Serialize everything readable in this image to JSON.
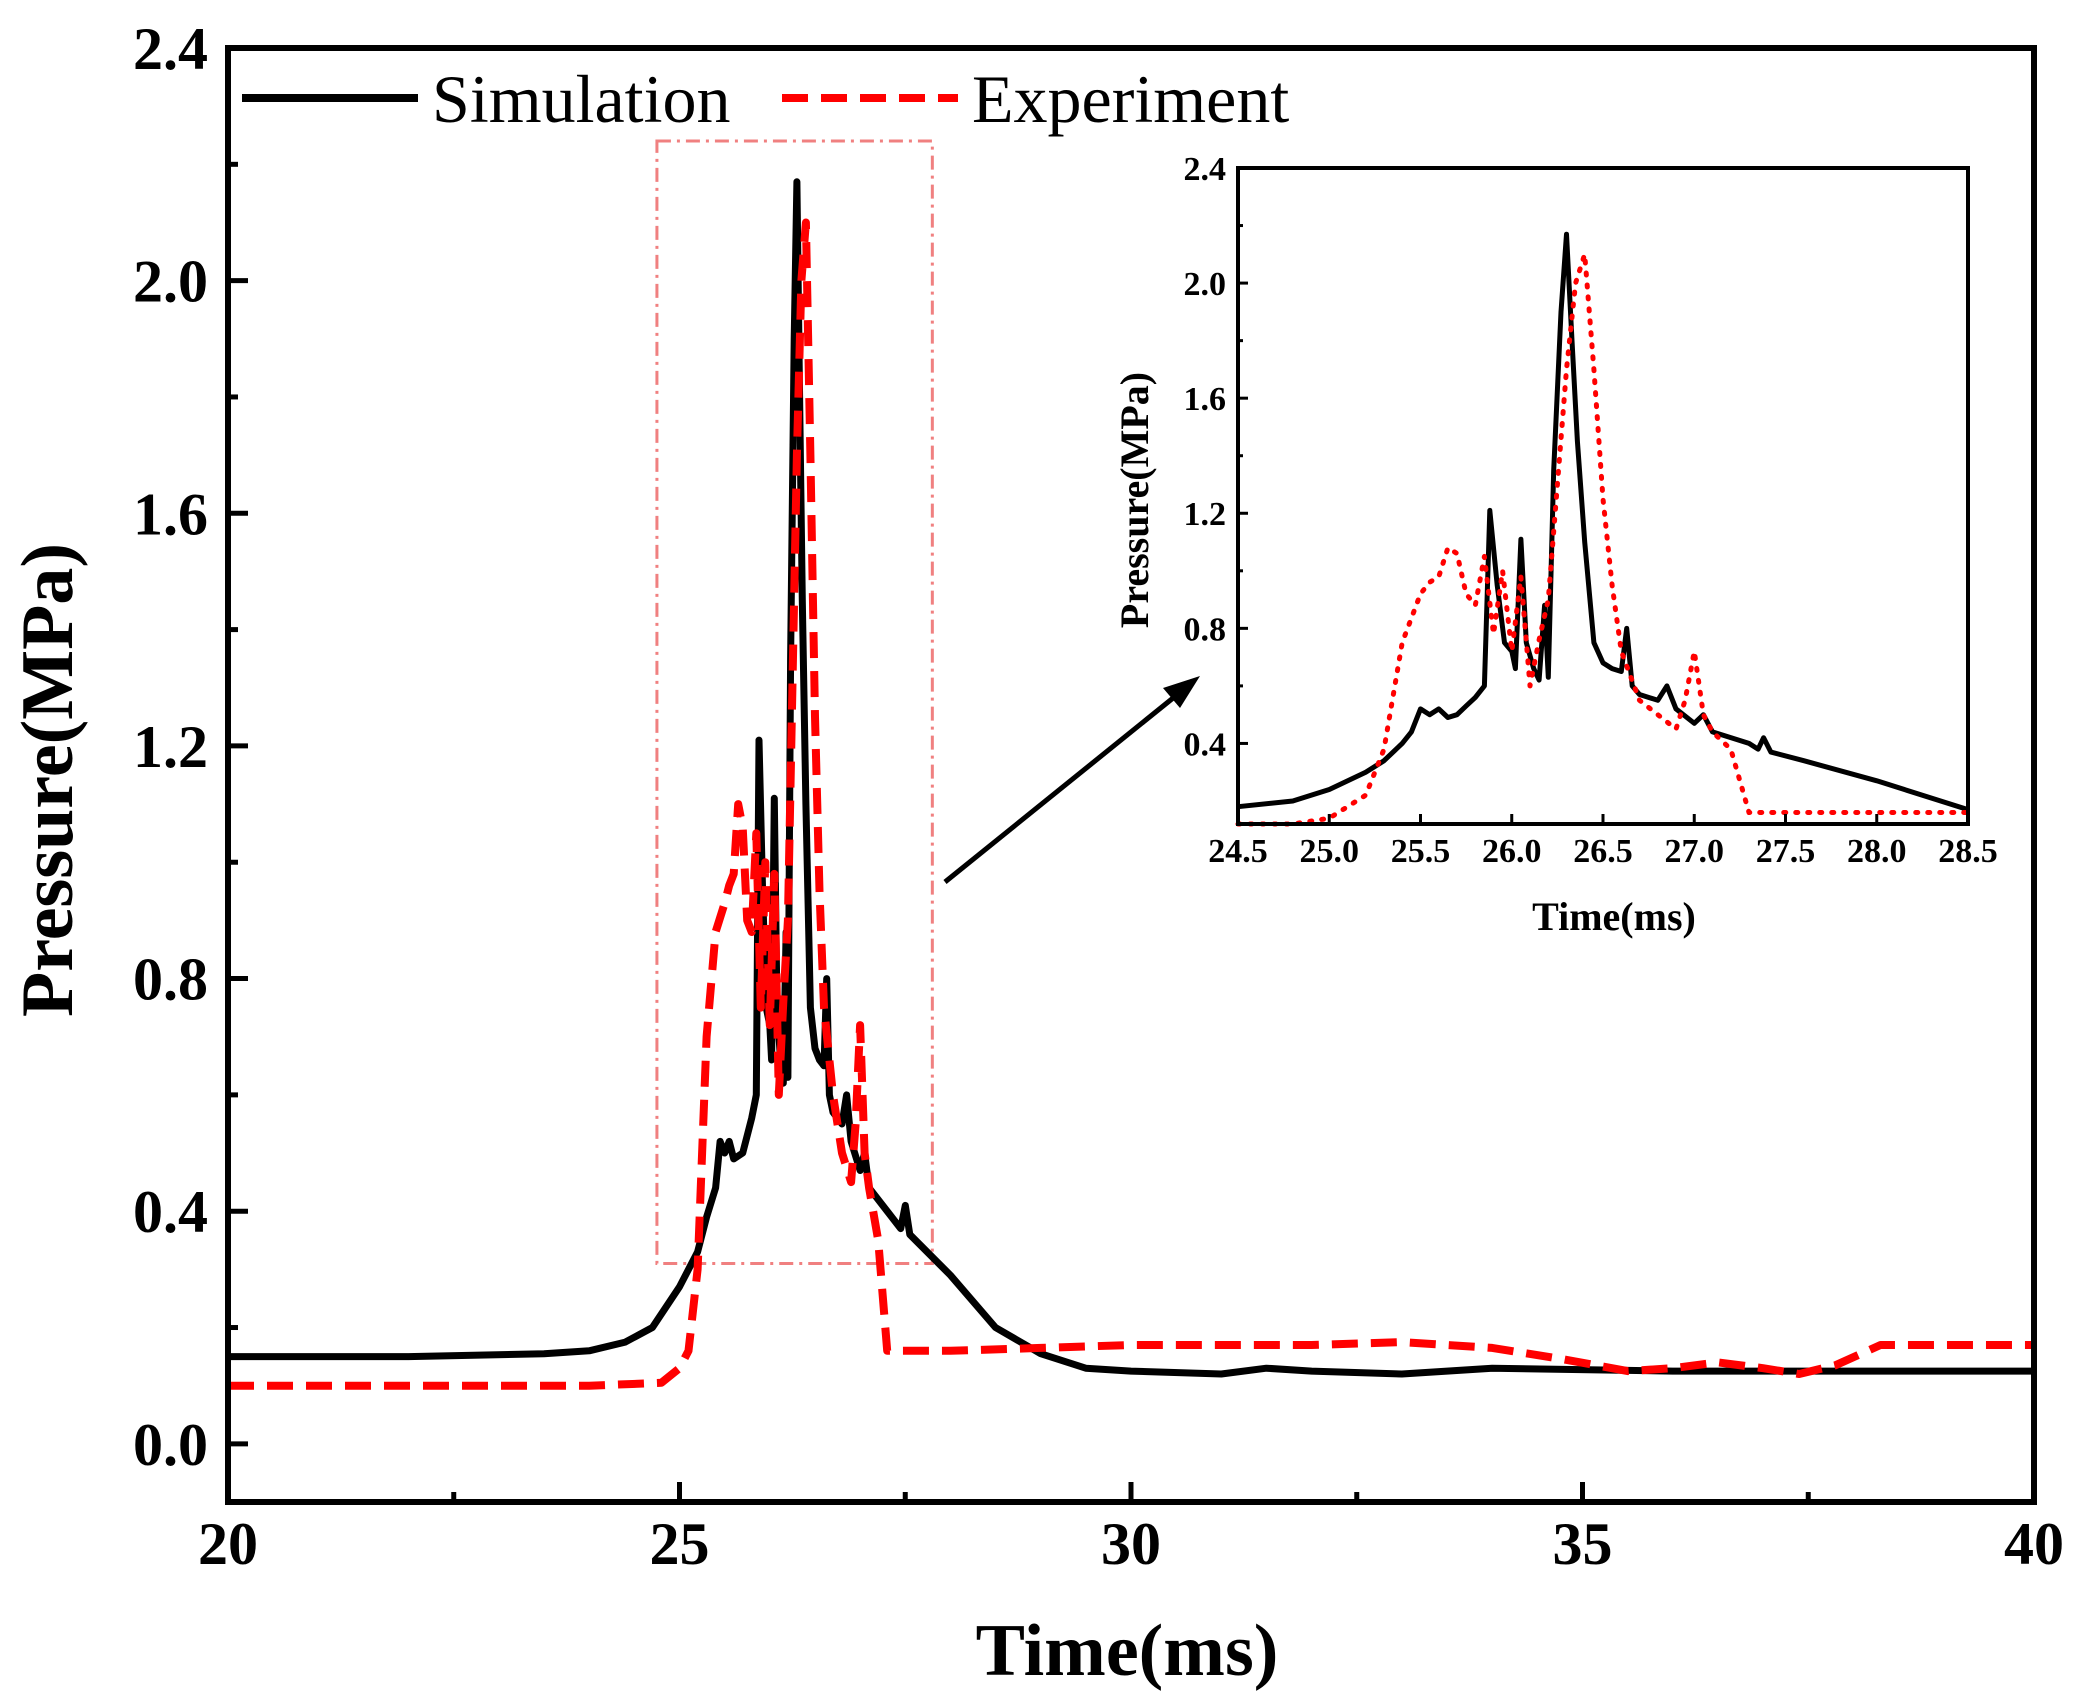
{
  "chart_data": [
    {
      "type": "line",
      "role": "main",
      "xlabel": "Time(ms)",
      "ylabel": "Pressure(MPa)",
      "xlim": [
        20,
        40
      ],
      "ylim": [
        -0.1,
        2.4
      ],
      "xticks": [
        20,
        25,
        30,
        35,
        40
      ],
      "xtick_labels": [
        "20",
        "25",
        "30",
        "35",
        "40"
      ],
      "yticks": [
        0.0,
        0.4,
        0.8,
        1.2,
        1.6,
        2.0,
        2.4
      ],
      "ytick_labels": [
        "0.0",
        "0.4",
        "0.8",
        "1.2",
        "1.6",
        "2.0",
        "2.4"
      ],
      "legend_position": "top-left",
      "zoom_box": {
        "x": [
          24.75,
          27.8
        ],
        "y": [
          0.31,
          2.24
        ]
      },
      "series": [
        {
          "name": "Simulation",
          "style": "solid",
          "color": "#000000",
          "points": [
            [
              20,
              0.15
            ],
            [
              22,
              0.15
            ],
            [
              23.5,
              0.155
            ],
            [
              24,
              0.16
            ],
            [
              24.4,
              0.175
            ],
            [
              24.7,
              0.2
            ],
            [
              25.0,
              0.27
            ],
            [
              25.2,
              0.33
            ],
            [
              25.3,
              0.39
            ],
            [
              25.4,
              0.44
            ],
            [
              25.45,
              0.52
            ],
            [
              25.5,
              0.5
            ],
            [
              25.55,
              0.52
            ],
            [
              25.6,
              0.49
            ],
            [
              25.7,
              0.5
            ],
            [
              25.75,
              0.53
            ],
            [
              25.8,
              0.56
            ],
            [
              25.85,
              0.6
            ],
            [
              25.88,
              1.21
            ],
            [
              25.92,
              0.95
            ],
            [
              25.96,
              0.75
            ],
            [
              26.0,
              0.72
            ],
            [
              26.02,
              0.66
            ],
            [
              26.05,
              1.11
            ],
            [
              26.08,
              0.75
            ],
            [
              26.12,
              0.66
            ],
            [
              26.15,
              0.62
            ],
            [
              26.18,
              0.88
            ],
            [
              26.2,
              0.63
            ],
            [
              26.23,
              1.35
            ],
            [
              26.27,
              1.9
            ],
            [
              26.3,
              2.17
            ],
            [
              26.33,
              1.8
            ],
            [
              26.36,
              1.45
            ],
            [
              26.4,
              1.1
            ],
            [
              26.45,
              0.75
            ],
            [
              26.5,
              0.68
            ],
            [
              26.55,
              0.66
            ],
            [
              26.6,
              0.65
            ],
            [
              26.63,
              0.8
            ],
            [
              26.66,
              0.6
            ],
            [
              26.7,
              0.57
            ],
            [
              26.8,
              0.55
            ],
            [
              26.85,
              0.6
            ],
            [
              26.9,
              0.52
            ],
            [
              27.0,
              0.47
            ],
            [
              27.05,
              0.5
            ],
            [
              27.1,
              0.44
            ],
            [
              27.3,
              0.4
            ],
            [
              27.45,
              0.37
            ],
            [
              27.5,
              0.41
            ],
            [
              27.55,
              0.36
            ],
            [
              28.0,
              0.29
            ],
            [
              28.5,
              0.2
            ],
            [
              29.0,
              0.155
            ],
            [
              29.5,
              0.13
            ],
            [
              30,
              0.125
            ],
            [
              31,
              0.12
            ],
            [
              31.5,
              0.13
            ],
            [
              32,
              0.125
            ],
            [
              33,
              0.12
            ],
            [
              34,
              0.13
            ],
            [
              36,
              0.125
            ],
            [
              38,
              0.125
            ],
            [
              40,
              0.125
            ]
          ]
        },
        {
          "name": "Experiment",
          "style": "dashed",
          "color": "#ff0000",
          "points": [
            [
              20,
              0.1
            ],
            [
              24,
              0.1
            ],
            [
              24.8,
              0.105
            ],
            [
              25.0,
              0.13
            ],
            [
              25.1,
              0.16
            ],
            [
              25.2,
              0.3
            ],
            [
              25.3,
              0.7
            ],
            [
              25.4,
              0.88
            ],
            [
              25.5,
              0.93
            ],
            [
              25.55,
              0.96
            ],
            [
              25.6,
              0.98
            ],
            [
              25.65,
              1.1
            ],
            [
              25.7,
              1.06
            ],
            [
              25.75,
              0.9
            ],
            [
              25.8,
              0.88
            ],
            [
              25.85,
              1.05
            ],
            [
              25.9,
              0.75
            ],
            [
              25.95,
              1.0
            ],
            [
              26.0,
              0.72
            ],
            [
              26.05,
              0.98
            ],
            [
              26.1,
              0.6
            ],
            [
              26.15,
              0.76
            ],
            [
              26.2,
              0.9
            ],
            [
              26.25,
              1.3
            ],
            [
              26.3,
              1.7
            ],
            [
              26.35,
              2.0
            ],
            [
              26.4,
              2.1
            ],
            [
              26.45,
              1.7
            ],
            [
              26.5,
              1.25
            ],
            [
              26.55,
              0.95
            ],
            [
              26.6,
              0.75
            ],
            [
              26.7,
              0.6
            ],
            [
              26.8,
              0.5
            ],
            [
              26.9,
              0.45
            ],
            [
              26.95,
              0.55
            ],
            [
              27.0,
              0.72
            ],
            [
              27.05,
              0.5
            ],
            [
              27.1,
              0.44
            ],
            [
              27.2,
              0.35
            ],
            [
              27.3,
              0.16
            ],
            [
              27.5,
              0.16
            ],
            [
              28,
              0.16
            ],
            [
              29,
              0.165
            ],
            [
              30,
              0.17
            ],
            [
              31,
              0.17
            ],
            [
              32,
              0.17
            ],
            [
              33,
              0.175
            ],
            [
              34,
              0.165
            ],
            [
              34.8,
              0.145
            ],
            [
              35.5,
              0.125
            ],
            [
              36,
              0.13
            ],
            [
              36.5,
              0.14
            ],
            [
              37,
              0.13
            ],
            [
              37.4,
              0.12
            ],
            [
              37.8,
              0.135
            ],
            [
              38.3,
              0.17
            ],
            [
              39,
              0.17
            ],
            [
              40,
              0.17
            ]
          ]
        }
      ]
    },
    {
      "type": "line",
      "role": "inset",
      "xlabel": "Time(ms)",
      "ylabel": "Pressure(MPa)",
      "xlim": [
        24.5,
        28.5
      ],
      "ylim": [
        0.12,
        2.4
      ],
      "xticks": [
        24.5,
        25.0,
        25.5,
        26.0,
        26.5,
        27.0,
        27.5,
        28.0,
        28.5
      ],
      "xtick_labels": [
        "24.5",
        "25.0",
        "25.5",
        "26.0",
        "26.5",
        "27.0",
        "27.5",
        "28.0",
        "28.5"
      ],
      "yticks": [
        0.4,
        0.8,
        1.2,
        1.6,
        2.0,
        2.4
      ],
      "ytick_labels": [
        "0.4",
        "0.8",
        "1.2",
        "1.6",
        "2.0",
        "2.4"
      ],
      "series": [
        {
          "name": "Simulation",
          "style": "solid",
          "color": "#000000",
          "points": [
            [
              24.5,
              0.18
            ],
            [
              24.8,
              0.2
            ],
            [
              25.0,
              0.24
            ],
            [
              25.2,
              0.3
            ],
            [
              25.3,
              0.34
            ],
            [
              25.4,
              0.4
            ],
            [
              25.45,
              0.44
            ],
            [
              25.5,
              0.52
            ],
            [
              25.55,
              0.5
            ],
            [
              25.6,
              0.52
            ],
            [
              25.65,
              0.49
            ],
            [
              25.7,
              0.5
            ],
            [
              25.75,
              0.53
            ],
            [
              25.8,
              0.56
            ],
            [
              25.85,
              0.6
            ],
            [
              25.88,
              1.21
            ],
            [
              25.92,
              0.95
            ],
            [
              25.96,
              0.75
            ],
            [
              26.0,
              0.72
            ],
            [
              26.02,
              0.66
            ],
            [
              26.05,
              1.11
            ],
            [
              26.08,
              0.75
            ],
            [
              26.12,
              0.66
            ],
            [
              26.15,
              0.62
            ],
            [
              26.18,
              0.88
            ],
            [
              26.2,
              0.63
            ],
            [
              26.23,
              1.35
            ],
            [
              26.27,
              1.9
            ],
            [
              26.3,
              2.17
            ],
            [
              26.33,
              1.8
            ],
            [
              26.36,
              1.45
            ],
            [
              26.4,
              1.1
            ],
            [
              26.45,
              0.75
            ],
            [
              26.5,
              0.68
            ],
            [
              26.55,
              0.66
            ],
            [
              26.6,
              0.65
            ],
            [
              26.63,
              0.8
            ],
            [
              26.66,
              0.6
            ],
            [
              26.7,
              0.57
            ],
            [
              26.8,
              0.55
            ],
            [
              26.85,
              0.6
            ],
            [
              26.9,
              0.52
            ],
            [
              27.0,
              0.47
            ],
            [
              27.05,
              0.5
            ],
            [
              27.1,
              0.44
            ],
            [
              27.3,
              0.4
            ],
            [
              27.35,
              0.38
            ],
            [
              27.38,
              0.42
            ],
            [
              27.42,
              0.37
            ],
            [
              27.6,
              0.34
            ],
            [
              28.0,
              0.27
            ],
            [
              28.5,
              0.17
            ]
          ]
        },
        {
          "name": "Experiment",
          "style": "dotted",
          "color": "#ff0000",
          "points": [
            [
              24.5,
              0.12
            ],
            [
              24.8,
              0.12
            ],
            [
              25.0,
              0.14
            ],
            [
              25.2,
              0.22
            ],
            [
              25.3,
              0.38
            ],
            [
              25.4,
              0.75
            ],
            [
              25.5,
              0.92
            ],
            [
              25.55,
              0.96
            ],
            [
              25.6,
              0.98
            ],
            [
              25.65,
              1.08
            ],
            [
              25.7,
              1.06
            ],
            [
              25.75,
              0.92
            ],
            [
              25.8,
              0.88
            ],
            [
              25.85,
              1.05
            ],
            [
              25.9,
              0.78
            ],
            [
              25.95,
              1.0
            ],
            [
              26.0,
              0.72
            ],
            [
              26.05,
              0.98
            ],
            [
              26.1,
              0.6
            ],
            [
              26.15,
              0.76
            ],
            [
              26.2,
              0.9
            ],
            [
              26.25,
              1.3
            ],
            [
              26.3,
              1.7
            ],
            [
              26.35,
              2.0
            ],
            [
              26.4,
              2.1
            ],
            [
              26.45,
              1.7
            ],
            [
              26.5,
              1.25
            ],
            [
              26.55,
              0.95
            ],
            [
              26.6,
              0.72
            ],
            [
              26.7,
              0.55
            ],
            [
              26.8,
              0.5
            ],
            [
              26.9,
              0.45
            ],
            [
              26.95,
              0.55
            ],
            [
              27.0,
              0.72
            ],
            [
              27.05,
              0.5
            ],
            [
              27.1,
              0.44
            ],
            [
              27.2,
              0.38
            ],
            [
              27.3,
              0.16
            ],
            [
              27.5,
              0.16
            ],
            [
              28.0,
              0.16
            ],
            [
              28.5,
              0.16
            ]
          ]
        }
      ]
    }
  ]
}
